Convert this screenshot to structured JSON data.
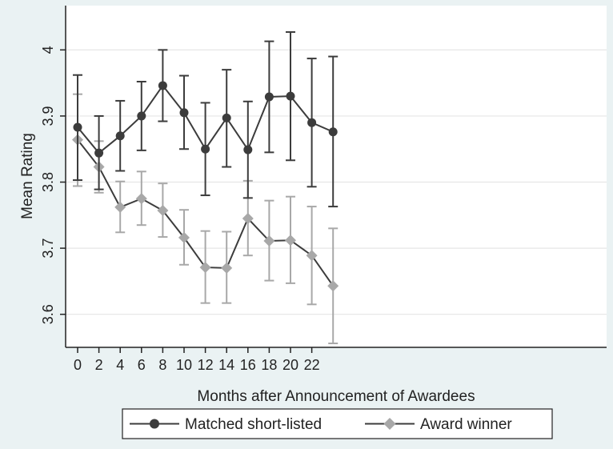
{
  "chart_data": {
    "type": "line",
    "xlabel": "Months after Announcement of Awardees",
    "ylabel": "Mean Rating",
    "xlim": [
      0,
      24
    ],
    "ylim": [
      3.55,
      4.05
    ],
    "xticks": [
      "0",
      "2",
      "4",
      "6",
      "8",
      "10",
      "12",
      "14",
      "16",
      "18",
      "20",
      "22"
    ],
    "yticks": [
      "3.6",
      "3.7",
      "3.8",
      "3.9",
      "4"
    ],
    "grid": true,
    "error_bars": true,
    "legend": {
      "position": "bottom",
      "entries": [
        "Matched short-listed",
        "Award winner"
      ]
    },
    "x": [
      0,
      2,
      4,
      6,
      8,
      10,
      12,
      14,
      16,
      18,
      20,
      22,
      24
    ],
    "series": [
      {
        "name": "Matched short-listed",
        "color": "#3c3c3c",
        "marker": "circle",
        "values": [
          3.883,
          3.844,
          3.87,
          3.9,
          3.946,
          3.905,
          3.85,
          3.897,
          3.849,
          3.929,
          3.93,
          3.89,
          3.876
        ],
        "lower": [
          3.803,
          3.789,
          3.817,
          3.848,
          3.892,
          3.85,
          3.78,
          3.823,
          3.776,
          3.845,
          3.833,
          3.793,
          3.763
        ],
        "upper": [
          3.962,
          3.9,
          3.923,
          3.952,
          4.0,
          3.961,
          3.92,
          3.97,
          3.922,
          4.013,
          4.027,
          3.987,
          3.99
        ]
      },
      {
        "name": "Award winner",
        "color": "#a8a8a8",
        "marker": "diamond",
        "values": [
          3.864,
          3.823,
          3.762,
          3.775,
          3.757,
          3.716,
          3.671,
          3.67,
          3.745,
          3.711,
          3.712,
          3.689,
          3.643
        ],
        "lower": [
          3.794,
          3.784,
          3.724,
          3.735,
          3.717,
          3.675,
          3.617,
          3.617,
          3.689,
          3.651,
          3.647,
          3.615,
          3.556
        ],
        "upper": [
          3.933,
          3.862,
          3.801,
          3.816,
          3.798,
          3.758,
          3.726,
          3.725,
          3.802,
          3.772,
          3.778,
          3.763,
          3.73
        ]
      }
    ]
  }
}
